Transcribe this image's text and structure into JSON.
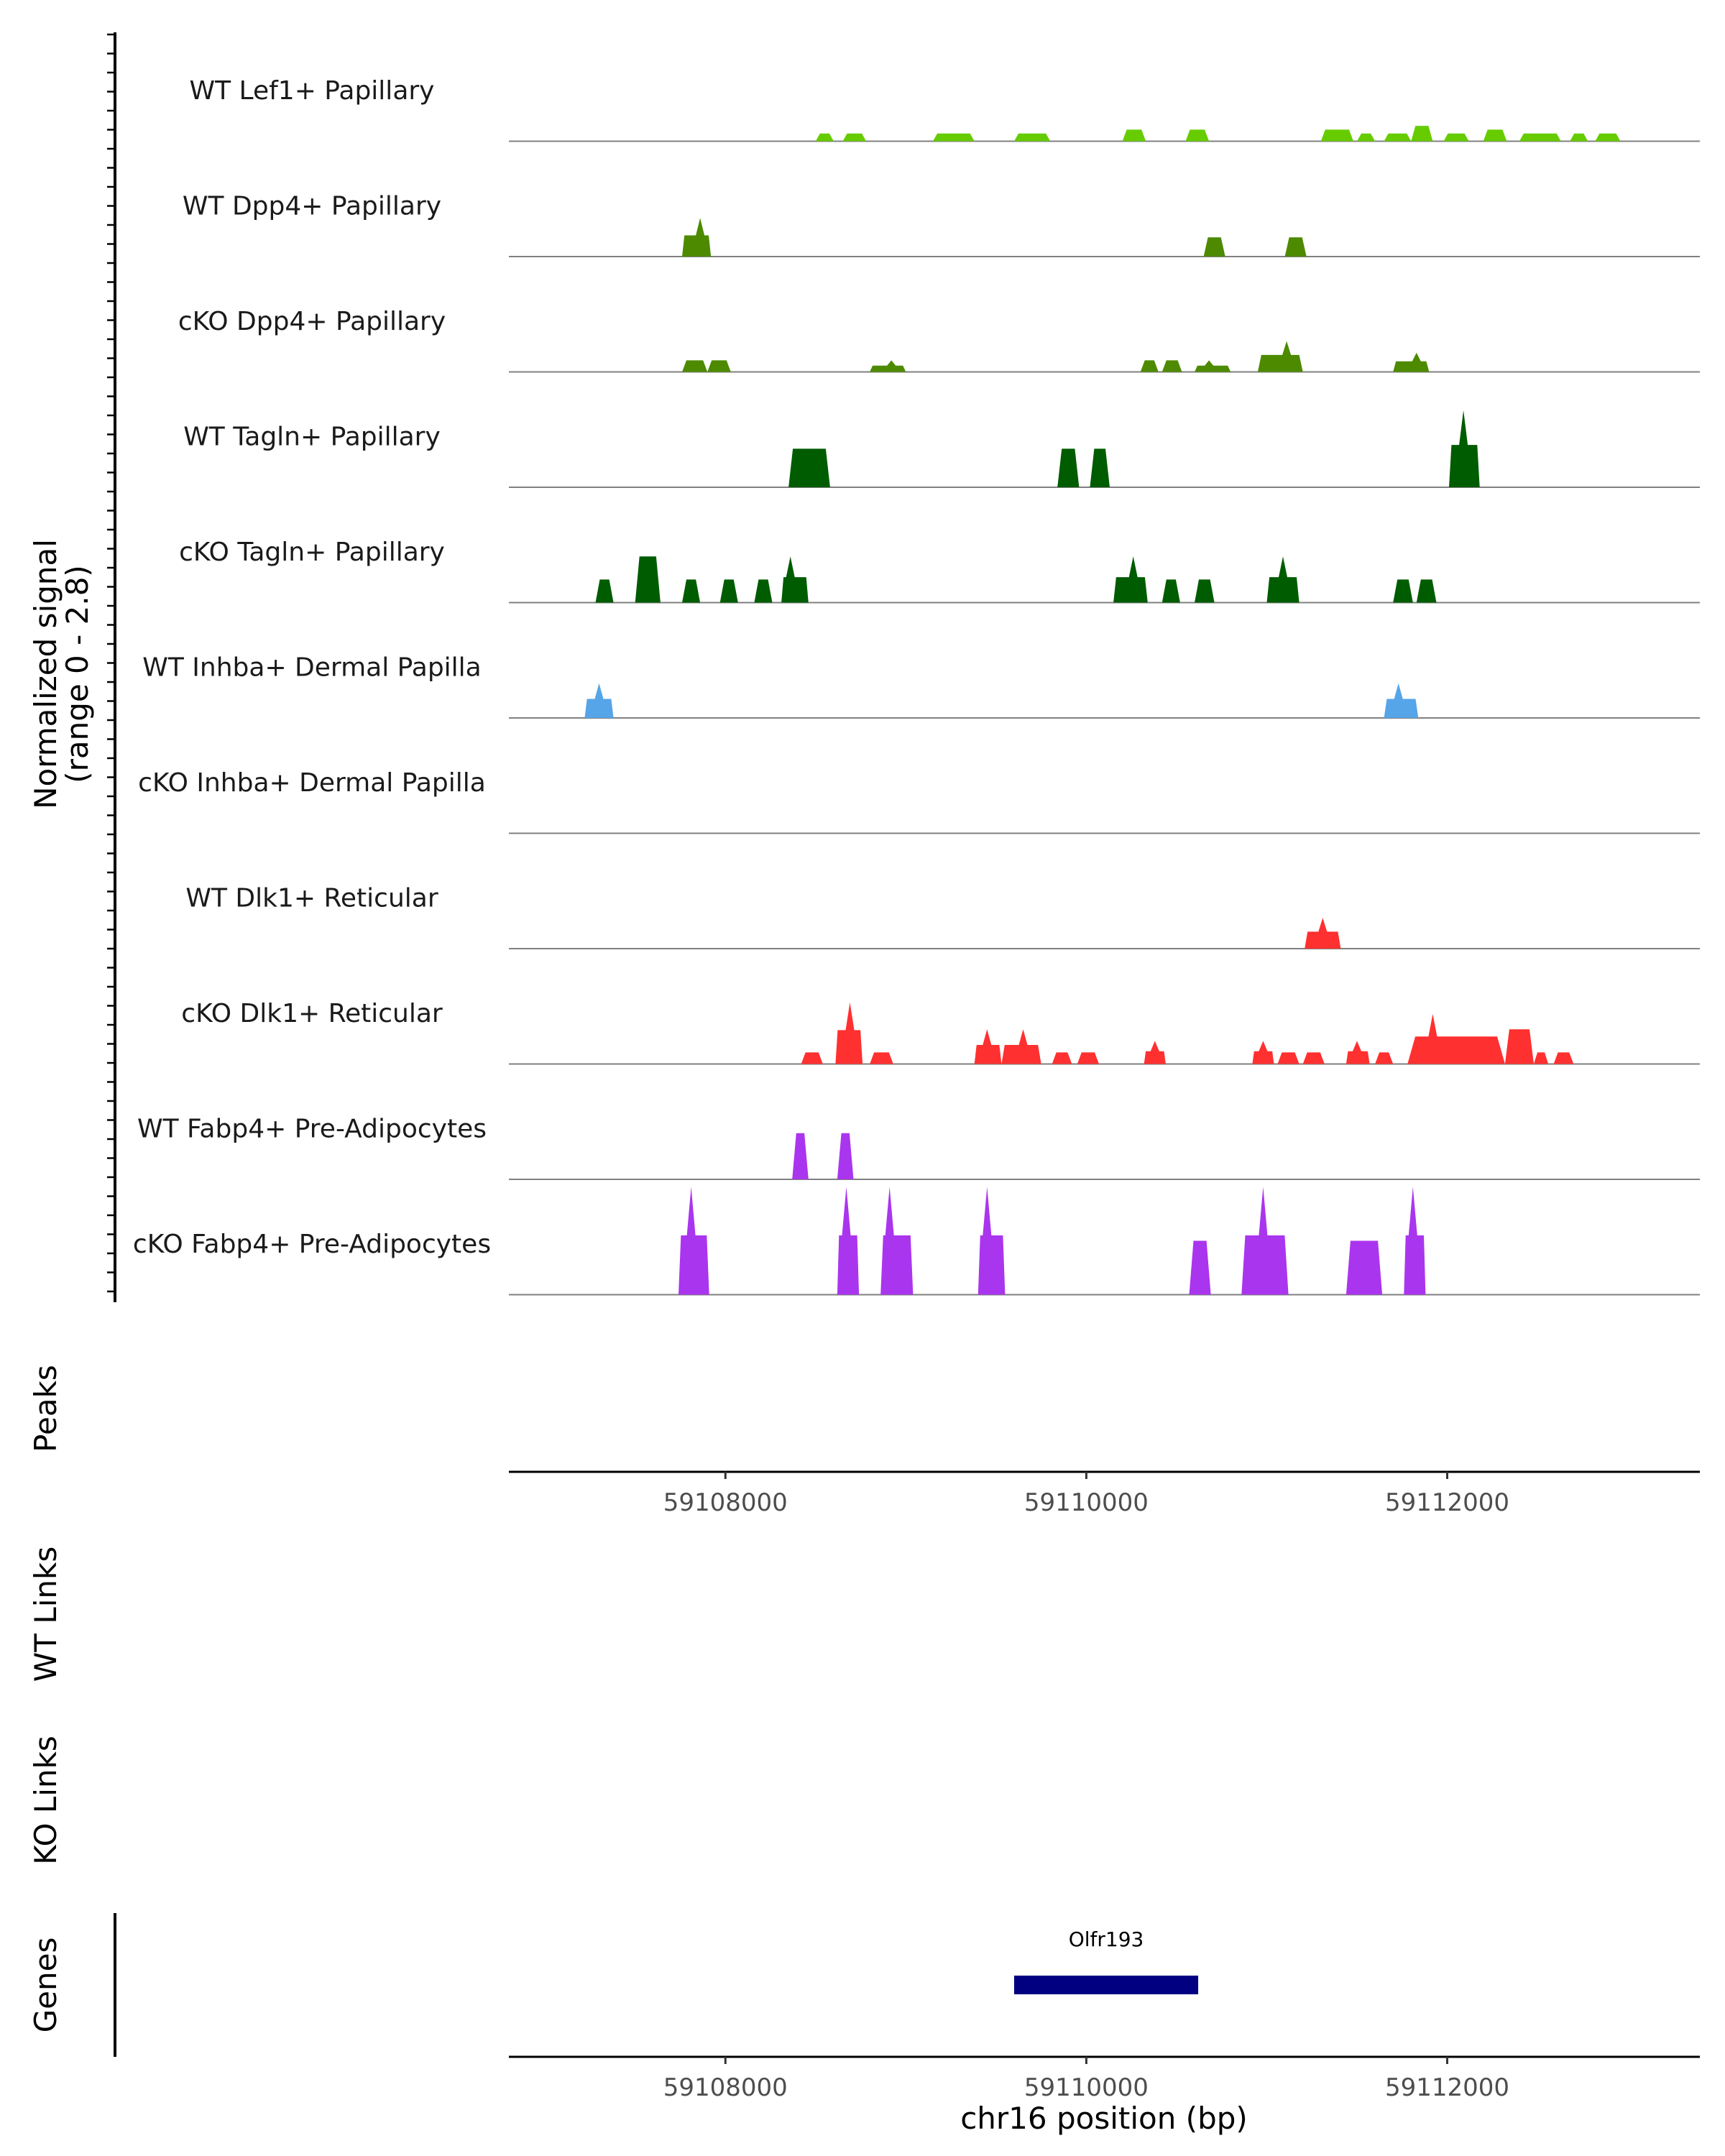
{
  "chart_data": {
    "type": "area",
    "title": "",
    "region": {
      "chromosome": "chr16",
      "xlim": [
        59106800,
        59113400
      ]
    },
    "coverage": {
      "ylabel_line1": "Normalized signal",
      "ylabel_line2": "(range 0 - 2.8)",
      "ylim": [
        0,
        2.8
      ],
      "tracks": [
        {
          "name": "WT Lef1+ Papillary",
          "color": "#66cc00",
          "peaks": [
            [
              59108500,
              59108600,
              0.2
            ],
            [
              59108650,
              59108780,
              0.2
            ],
            [
              59109150,
              59109380,
              0.2
            ],
            [
              59109600,
              59109800,
              0.2
            ],
            [
              59110200,
              59110330,
              0.3
            ],
            [
              59110550,
              59110680,
              0.3
            ],
            [
              59111300,
              59111480,
              0.3
            ],
            [
              59111500,
              59111600,
              0.2
            ],
            [
              59111650,
              59111800,
              0.2
            ],
            [
              59111800,
              59111920,
              0.4
            ],
            [
              59111980,
              59112120,
              0.2
            ],
            [
              59112200,
              59112330,
              0.3
            ],
            [
              59112400,
              59112630,
              0.2
            ],
            [
              59112680,
              59112780,
              0.2
            ],
            [
              59112820,
              59112960,
              0.2
            ]
          ]
        },
        {
          "name": "WT Dpp4+ Papillary",
          "color": "#4d8a00",
          "peaks": [
            [
              59107760,
              59107920,
              1.0,
              59107860
            ],
            [
              59110650,
              59110770,
              0.5
            ],
            [
              59111100,
              59111220,
              0.5
            ]
          ]
        },
        {
          "name": "cKO Dpp4+ Papillary",
          "color": "#4d8a00",
          "peaks": [
            [
              59107760,
              59107900,
              0.3
            ],
            [
              59107900,
              59108030,
              0.3
            ],
            [
              59108800,
              59109000,
              0.3,
              59108920
            ],
            [
              59110300,
              59110400,
              0.3
            ],
            [
              59110420,
              59110530,
              0.3
            ],
            [
              59110600,
              59110800,
              0.3,
              59110680
            ],
            [
              59110950,
              59111200,
              0.8,
              59111110
            ],
            [
              59111700,
              59111900,
              0.5,
              59111830
            ]
          ]
        },
        {
          "name": "WT Tagln+ Papillary",
          "color": "#005c00",
          "peaks": [
            [
              59108350,
              59108580,
              1.0
            ],
            [
              59109840,
              59109960,
              1.0
            ],
            [
              59110020,
              59110130,
              1.0
            ],
            [
              59112010,
              59112180,
              2.0,
              59112090
            ]
          ]
        },
        {
          "name": "cKO Tagln+ Papillary",
          "color": "#005c00",
          "peaks": [
            [
              59107280,
              59107380,
              0.6
            ],
            [
              59107500,
              59107640,
              1.2
            ],
            [
              59107760,
              59107860,
              0.6
            ],
            [
              59107970,
              59108070,
              0.6
            ],
            [
              59108160,
              59108260,
              0.6
            ],
            [
              59108310,
              59108460,
              1.2,
              59108360
            ],
            [
              59110150,
              59110340,
              1.2,
              59110260
            ],
            [
              59110420,
              59110520,
              0.6
            ],
            [
              59110600,
              59110710,
              0.6
            ],
            [
              59111000,
              59111180,
              1.2,
              59111090
            ],
            [
              59111700,
              59111810,
              0.6
            ],
            [
              59111830,
              59111940,
              0.6
            ]
          ]
        },
        {
          "name": "WT Inhba+ Dermal Papilla",
          "color": "#56a5e8",
          "peaks": [
            [
              59107220,
              59107380,
              0.9,
              59107300
            ],
            [
              59111650,
              59111840,
              0.9,
              59111730
            ]
          ]
        },
        {
          "name": "cKO Inhba+ Dermal Papilla",
          "color": "#56a5e8",
          "peaks": []
        },
        {
          "name": "WT Dlk1+ Reticular",
          "color": "#ff3030",
          "peaks": [
            [
              59111210,
              59111410,
              0.8,
              59111310
            ]
          ]
        },
        {
          "name": "cKO Dlk1+ Reticular",
          "color": "#ff3030",
          "peaks": [
            [
              59108420,
              59108540,
              0.3
            ],
            [
              59108610,
              59108760,
              1.6,
              59108690
            ],
            [
              59108800,
              59108930,
              0.3
            ],
            [
              59109380,
              59109530,
              0.9,
              59109450
            ],
            [
              59109530,
              59109750,
              0.9,
              59109650
            ],
            [
              59109810,
              59109920,
              0.3
            ],
            [
              59109950,
              59110070,
              0.3
            ],
            [
              59110320,
              59110440,
              0.6,
              59110380
            ],
            [
              59110920,
              59111040,
              0.6,
              59110980
            ],
            [
              59111060,
              59111180,
              0.3
            ],
            [
              59111200,
              59111320,
              0.3
            ],
            [
              59111440,
              59111570,
              0.6,
              59111500
            ],
            [
              59111600,
              59111700,
              0.3
            ],
            [
              59111780,
              59112320,
              1.3,
              59111920
            ],
            [
              59112320,
              59112480,
              0.9
            ],
            [
              59112480,
              59112560,
              0.3
            ],
            [
              59112590,
              59112700,
              0.3
            ]
          ]
        },
        {
          "name": "WT Fabp4+ Pre-Adipocytes",
          "color": "#aa35ee",
          "peaks": [
            [
              59108370,
              59108460,
              1.2
            ],
            [
              59108620,
              59108710,
              1.2
            ]
          ]
        },
        {
          "name": "cKO Fabp4+ Pre-Adipocytes",
          "color": "#aa35ee",
          "peaks": [
            [
              59107740,
              59107910,
              2.8,
              59107810
            ],
            [
              59108620,
              59108740,
              2.8,
              59108670
            ],
            [
              59108860,
              59109040,
              2.8,
              59108910
            ],
            [
              59109400,
              59109550,
              2.8,
              59109450
            ],
            [
              59110570,
              59110690,
              1.4
            ],
            [
              59110860,
              59111120,
              2.8,
              59110980
            ],
            [
              59111440,
              59111640,
              1.4
            ],
            [
              59111760,
              59111880,
              2.8,
              59111810
            ]
          ]
        }
      ]
    },
    "peaks_track": {
      "label": "Peaks",
      "ticks": [
        59108000,
        59110000,
        59112000
      ],
      "tick_labels": [
        "59108000",
        "59110000",
        "59112000"
      ]
    },
    "links": [
      {
        "label": "WT Links"
      },
      {
        "label": "KO Links"
      }
    ],
    "genes": {
      "label": "Genes",
      "items": [
        {
          "name": "Olfr193",
          "start": 59109600,
          "end": 59110620,
          "color": "#000080"
        }
      ],
      "ticks": [
        59108000,
        59110000,
        59112000
      ],
      "tick_labels": [
        "59108000",
        "59110000",
        "59112000"
      ],
      "xlabel": "chr16 position (bp)"
    }
  }
}
